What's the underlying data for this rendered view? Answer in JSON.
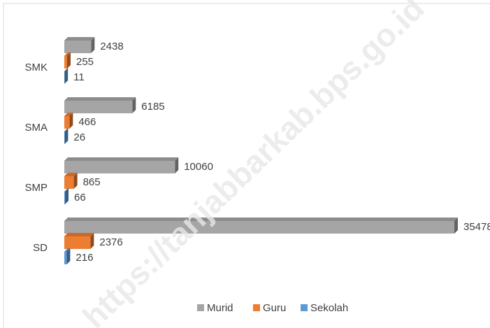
{
  "chart_data": {
    "type": "bar3d-horizontal",
    "categories": [
      "SMK",
      "SMA",
      "SMP",
      "SD"
    ],
    "series": [
      {
        "name": "Murid",
        "color": "#a5a5a5",
        "values": [
          2438,
          6185,
          10060,
          35478
        ]
      },
      {
        "name": "Guru",
        "color": "#ed7d31",
        "values": [
          255,
          466,
          865,
          2376
        ]
      },
      {
        "name": "Sekolah",
        "color": "#5b9bd5",
        "values": [
          11,
          26,
          66,
          216
        ]
      }
    ],
    "legend": "bottom",
    "watermark": "https://tanjabbarkab.bps.go.id"
  }
}
